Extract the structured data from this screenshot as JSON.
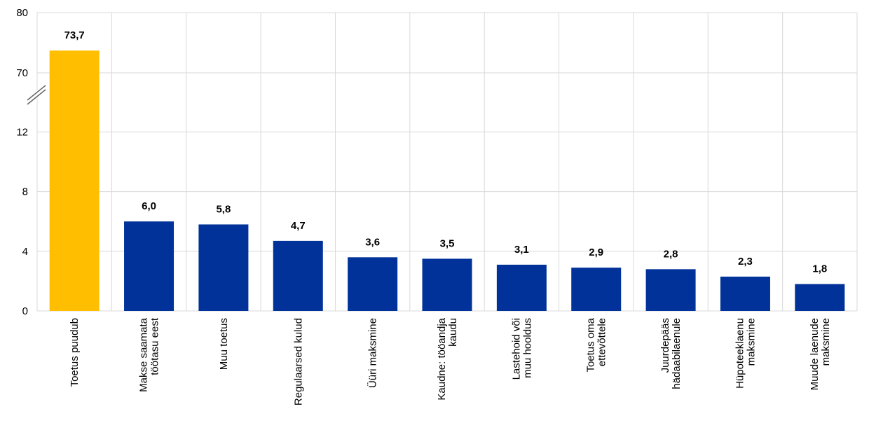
{
  "chart_data": {
    "type": "bar",
    "title": "",
    "xlabel": "",
    "ylabel": "",
    "axis_break": true,
    "yticks": [
      {
        "label": "0",
        "value": 0
      },
      {
        "label": "4",
        "value": 4
      },
      {
        "label": "8",
        "value": 8
      },
      {
        "label": "12",
        "value": 12
      },
      {
        "label": "70",
        "value": 70
      },
      {
        "label": "80",
        "value": 80
      }
    ],
    "categories": [
      [
        "Toetus puudub"
      ],
      [
        "Makse saamata",
        "töötasu eest"
      ],
      [
        "Muu toetus"
      ],
      [
        "Regulaarsed kulud"
      ],
      [
        "Üüri maksmine"
      ],
      [
        "Kaudne: tööandja",
        "kaudu"
      ],
      [
        "Lastehoid või",
        "muu hooldus"
      ],
      [
        "Toetus oma",
        "ettevõttele"
      ],
      [
        "Juurdepääs",
        "hädaabilaenule"
      ],
      [
        "Hüpoteeklaenu",
        "maksmine"
      ],
      [
        "Muude laenude",
        "maksmine"
      ]
    ],
    "values": [
      73.7,
      6.0,
      5.8,
      4.7,
      3.6,
      3.5,
      3.1,
      2.9,
      2.8,
      2.3,
      1.8
    ],
    "value_labels": [
      "73,7",
      "6,0",
      "5,8",
      "4,7",
      "3,6",
      "3,5",
      "3,1",
      "2,9",
      "2,8",
      "2,3",
      "1,8"
    ],
    "colors": [
      "#FFBF00",
      "#003299",
      "#003299",
      "#003299",
      "#003299",
      "#003299",
      "#003299",
      "#003299",
      "#003299",
      "#003299",
      "#003299"
    ],
    "grid": true,
    "legend": "none"
  }
}
